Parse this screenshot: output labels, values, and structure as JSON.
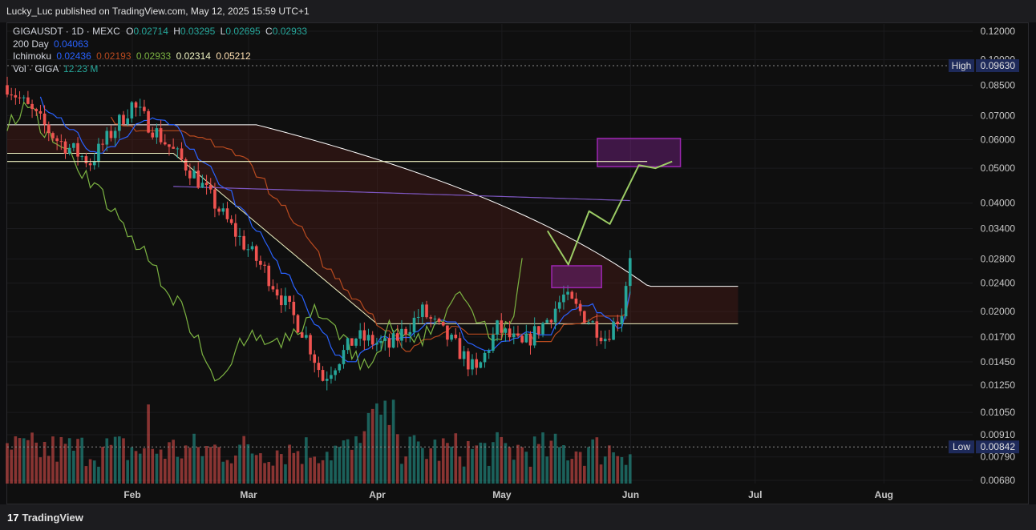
{
  "header": {
    "publisher_line": "Lucky_Luc published on TradingView.com, May 12, 2025 15:59 UTC+1"
  },
  "legend": {
    "symbol_line": "GIGAUSDT · 1D · MEXC",
    "o_label": "O",
    "o_value": "0.02714",
    "h_label": "H",
    "h_value": "0.03295",
    "l_label": "L",
    "l_value": "0.02695",
    "c_label": "C",
    "c_value": "0.02933",
    "ma_label": "200 Day",
    "ma_value": "0.04063",
    "ichimoku_label": "Ichimoku",
    "ichimoku_values": [
      "0.02436",
      "0.02193",
      "0.02933",
      "0.02314",
      "0.05212"
    ],
    "vol_label": "Vol · GIGA",
    "vol_value": "12.23 M"
  },
  "footer": {
    "brand": "TradingView",
    "logo_mark": "17"
  },
  "colors": {
    "up": "#26a69a",
    "down": "#ef5350",
    "tenkan": "#2962ff",
    "kijun": "#b84a1f",
    "chikou": "#7cb342",
    "spanA": "#f0f4c3",
    "spanB": "#ffffff",
    "ma200": "#7e57c2",
    "box": "#9c27b0",
    "projection": "#9ccc65",
    "cloud_bear": "#5c1f1a"
  },
  "chart_data": {
    "type": "candlestick",
    "title": "GIGAUSDT · 1D · MEXC",
    "scale": "log",
    "price_ticks": [
      0.12,
      0.1,
      0.085,
      0.07,
      0.06,
      0.05,
      0.04,
      0.034,
      0.028,
      0.024,
      0.02,
      0.017,
      0.0145,
      0.0125,
      0.0105,
      0.0091,
      0.0079,
      0.0068
    ],
    "price_tick_labels": [
      "0.12000",
      "0.10000",
      "0.08500",
      "0.07000",
      "0.06000",
      "0.05000",
      "0.04000",
      "0.03400",
      "0.02800",
      "0.02400",
      "0.02000",
      "0.01700",
      "0.01450",
      "0.01250",
      "0.01050",
      "0.00910",
      "0.00790",
      "0.00680"
    ],
    "time_ticks": [
      "Feb",
      "Mar",
      "Apr",
      "May",
      "Jun",
      "Jul",
      "Aug"
    ],
    "time_tick_dates": [
      "2025-02-01",
      "2025-03-01",
      "2025-04-01",
      "2025-05-01",
      "2025-06-01",
      "2025-07-01",
      "2025-08-01"
    ],
    "high_marker": {
      "label": "High",
      "value": "0.09630"
    },
    "low_marker": {
      "label": "Low",
      "value": "0.00842"
    },
    "last_close": 0.02933,
    "ma200_last": 0.04063,
    "ichimoku_last": {
      "tenkan": 0.02436,
      "kijun": 0.02193,
      "chikou": 0.02933,
      "span_a": 0.02314,
      "span_b": 0.05212
    },
    "volume_last": "12.23 M",
    "target_box_1": {
      "start": "2025-05-13",
      "end": "2025-05-25",
      "low": 0.0233,
      "high": 0.0268
    },
    "target_box_2": {
      "start": "2025-05-24",
      "end": "2025-06-13",
      "low": 0.0505,
      "high": 0.0605
    }
  }
}
